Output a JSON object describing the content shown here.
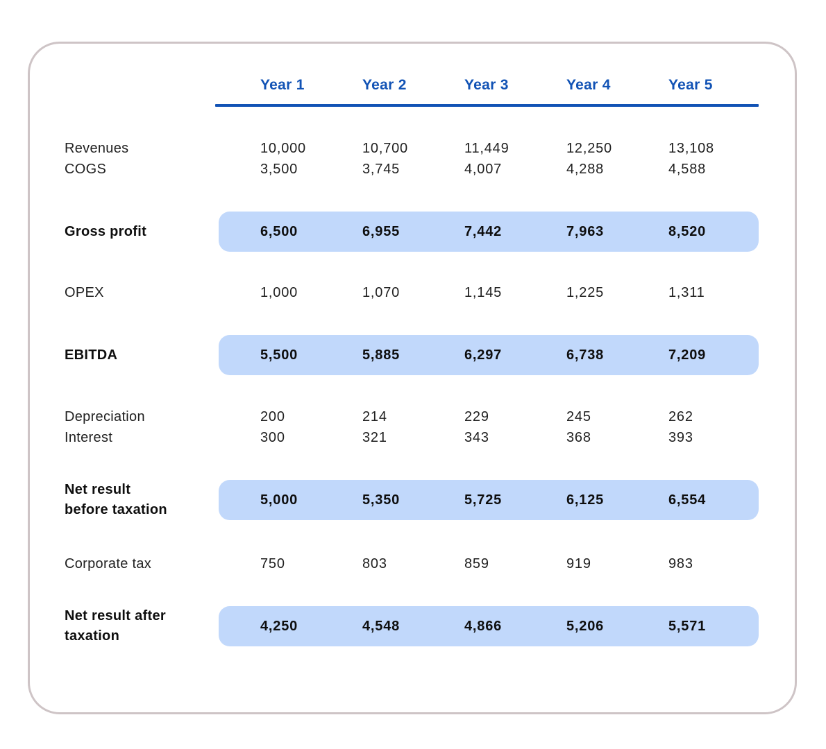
{
  "colors": {
    "accent": "#1253B5",
    "highlight": "#C1D8FB",
    "card_border": "#CEC4C6",
    "text": "#212121"
  },
  "chart_data": {
    "type": "table",
    "columns": [
      "Year 1",
      "Year 2",
      "Year 3",
      "Year 4",
      "Year 5"
    ],
    "rows": [
      {
        "label": "Revenues",
        "label_lines": [
          "Revenues"
        ],
        "highlight": false,
        "values": [
          "10,000",
          "10,700",
          "11,449",
          "12,250",
          "13,108"
        ]
      },
      {
        "label": "COGS",
        "label_lines": [
          "COGS"
        ],
        "highlight": false,
        "values": [
          "3,500",
          "3,745",
          "4,007",
          "4,288",
          "4,588"
        ]
      },
      {
        "label": "Gross profit",
        "label_lines": [
          "Gross profit"
        ],
        "highlight": true,
        "values": [
          "6,500",
          "6,955",
          "7,442",
          "7,963",
          "8,520"
        ]
      },
      {
        "label": "OPEX",
        "label_lines": [
          "OPEX"
        ],
        "highlight": false,
        "values": [
          "1,000",
          "1,070",
          "1,145",
          "1,225",
          "1,311"
        ]
      },
      {
        "label": "EBITDA",
        "label_lines": [
          "EBITDA"
        ],
        "highlight": true,
        "values": [
          "5,500",
          "5,885",
          "6,297",
          "6,738",
          "7,209"
        ]
      },
      {
        "label": "Depreciation",
        "label_lines": [
          "Depreciation"
        ],
        "highlight": false,
        "values": [
          "200",
          "214",
          "229",
          "245",
          "262"
        ]
      },
      {
        "label": "Interest",
        "label_lines": [
          "Interest"
        ],
        "highlight": false,
        "values": [
          "300",
          "321",
          "343",
          "368",
          "393"
        ]
      },
      {
        "label": "Net result before taxation",
        "label_lines": [
          "Net result",
          "before taxation"
        ],
        "highlight": true,
        "values": [
          "5,000",
          "5,350",
          "5,725",
          "6,125",
          "6,554"
        ]
      },
      {
        "label": "Corporate tax",
        "label_lines": [
          "Corporate tax"
        ],
        "highlight": false,
        "values": [
          "750",
          "803",
          "859",
          "919",
          "983"
        ]
      },
      {
        "label": "Net result after taxation",
        "label_lines": [
          "Net result after",
          "taxation"
        ],
        "highlight": true,
        "values": [
          "4,250",
          "4,548",
          "4,866",
          "5,206",
          "5,571"
        ]
      }
    ]
  }
}
